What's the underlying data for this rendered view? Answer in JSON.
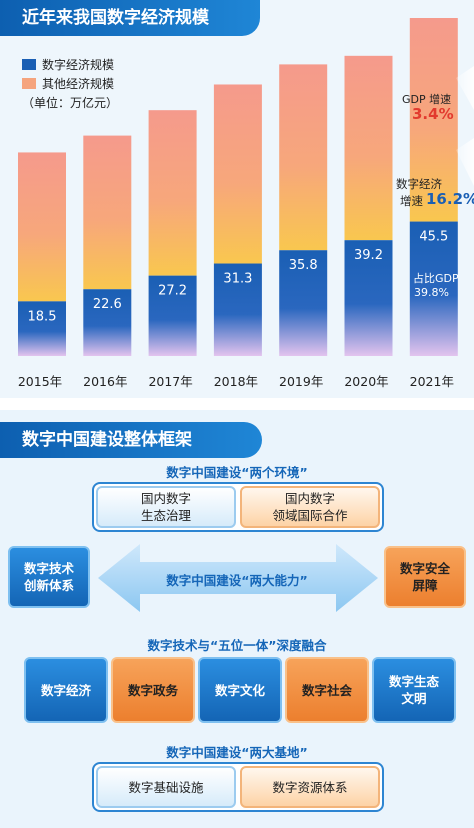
{
  "panel1": {
    "title": "近年来我国数字经济规模",
    "legend": [
      {
        "label": "数字经济规模",
        "color": "#1a5fb4"
      },
      {
        "label": "其他经济规模",
        "color": "#f5a47e"
      }
    ],
    "unit": "（单位：万亿元）",
    "gdp_label": "GDP 增速",
    "gdp_value": "3.4%",
    "digital_growth_label1": "数字经济",
    "digital_growth_label2": "增速",
    "digital_growth_value": "16.2%",
    "share_label": "占比GDP",
    "share_value": "39.8%"
  },
  "chart_data": {
    "type": "bar",
    "stacked": true,
    "categories": [
      "2015年",
      "2016年",
      "2017年",
      "2018年",
      "2019年",
      "2020年",
      "2021年"
    ],
    "series": [
      {
        "name": "数字经济规模",
        "values": [
          18.5,
          22.6,
          27.2,
          31.3,
          35.8,
          39.2,
          45.5
        ]
      }
    ],
    "data_labels": [
      "18.5",
      "22.6",
      "27.2",
      "31.3",
      "35.8",
      "39.2",
      "45.5"
    ],
    "total_values": [
      68.9,
      74.6,
      83.2,
      91.9,
      98.7,
      101.6,
      114.4
    ],
    "grid": false
  },
  "panel2": {
    "title": "数字中国建设整体框架",
    "env_title": "数字中国建设“两个环境”",
    "env_left": "国内数字\n生态治理",
    "env_right": "国内数字\n领域国际合作",
    "cap_title": "数字中国建设“两大能力”",
    "cap_left": "数字技术\n创新体系",
    "cap_right": "数字安全\n屏障",
    "fusion_title": "数字技术与“五位一体”深度融合",
    "fusion_items": [
      "数字经济",
      "数字政务",
      "数字文化",
      "数字社会",
      "数字生态\n文明"
    ],
    "base_title": "数字中国建设“两大基地”",
    "base_left": "数字基础设施",
    "base_right": "数字资源体系"
  }
}
